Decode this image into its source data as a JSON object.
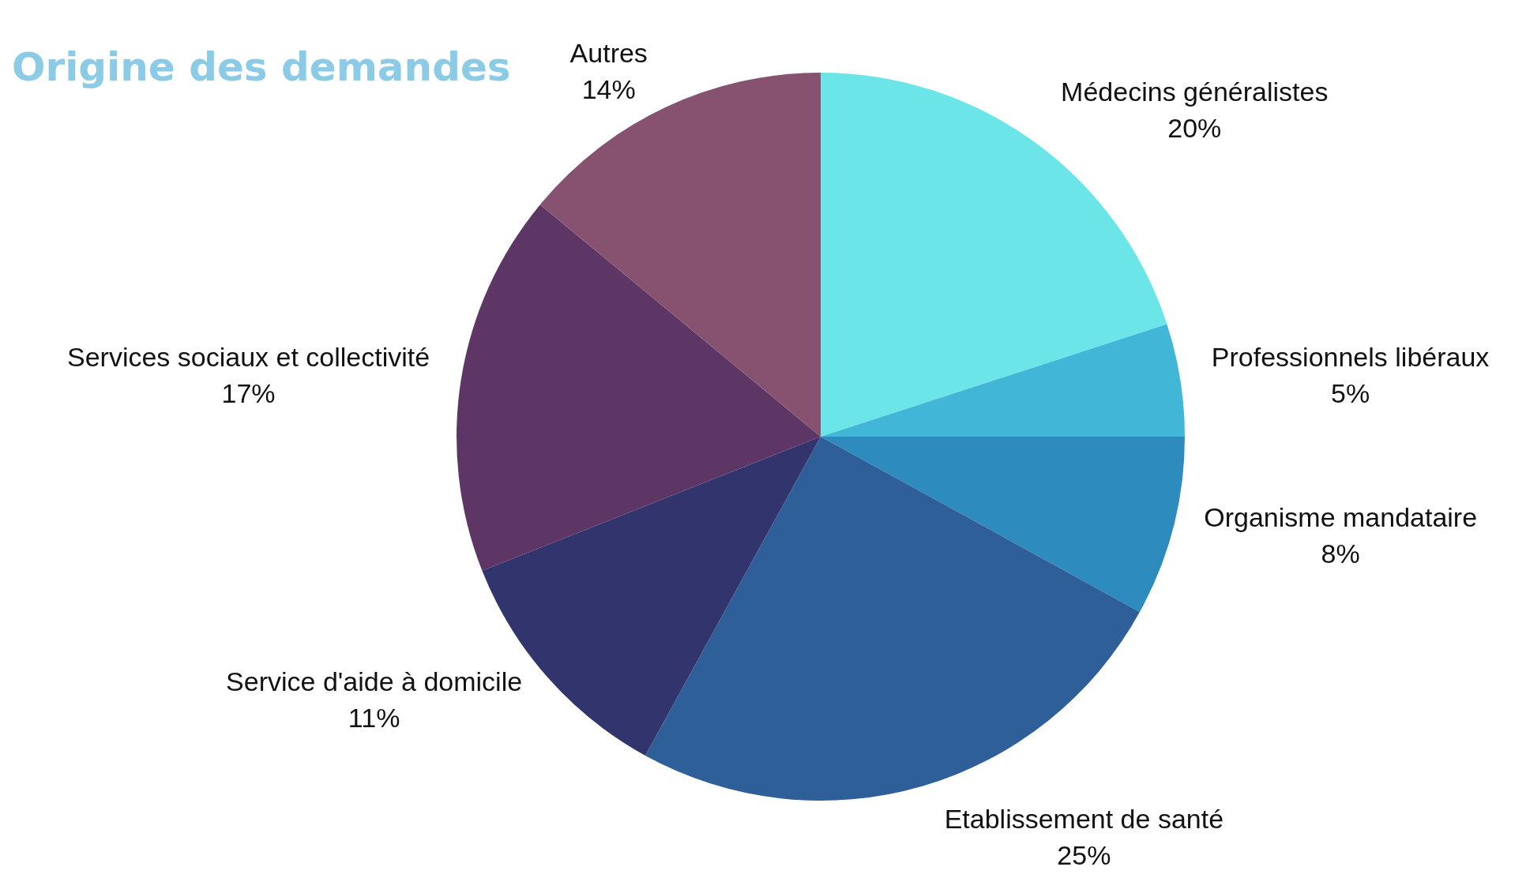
{
  "chart_data": {
    "type": "pie",
    "title": "Origine des demandes",
    "categories": [
      "Médecins généralistes",
      "Professionnels libéraux",
      "Organisme mandataire",
      "Etablissement de santé",
      "Service d'aide à domicile",
      "Services sociaux et collectivité",
      "Autres"
    ],
    "values": [
      20,
      5,
      8,
      25,
      11,
      17,
      14
    ],
    "value_labels": [
      "20%",
      "5%",
      "8%",
      "25%",
      "11%",
      "17%",
      "14%"
    ],
    "colors": [
      "#6ce5e8",
      "#42b6d6",
      "#2e8bbd",
      "#2e5f98",
      "#32356d",
      "#5e3666",
      "#87526f"
    ]
  }
}
